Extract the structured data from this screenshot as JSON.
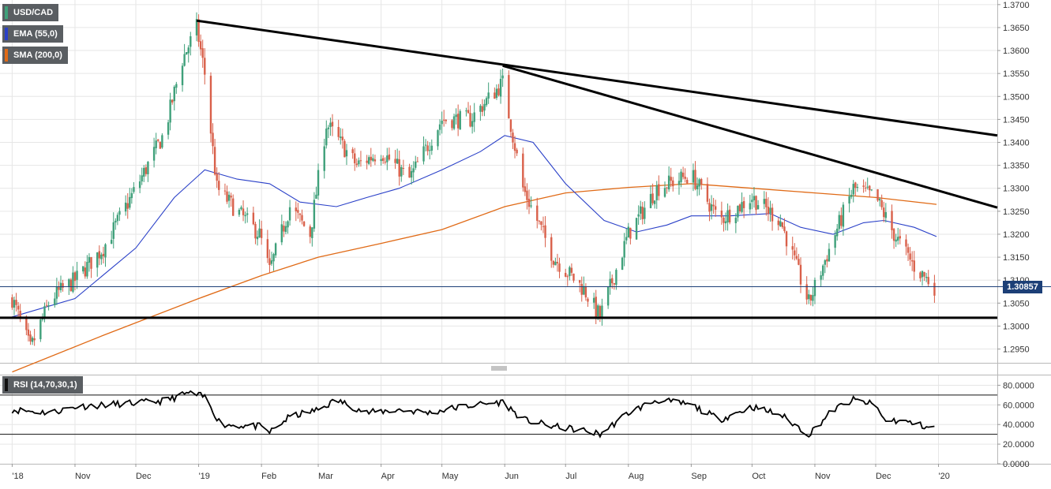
{
  "chart_data": [
    {
      "type": "candlestick",
      "title": "USD/CAD",
      "legend": [
        {
          "label": "USD/CAD",
          "color": "#3fa07a"
        },
        {
          "label": "EMA (55,0)",
          "color": "#2a40c8"
        },
        {
          "label": "SMA (200,0)",
          "color": "#e06a16"
        }
      ],
      "last_price": "1.30857",
      "ylim": [
        1.292,
        1.371
      ],
      "y_ticks": [
        "1.3700",
        "1.3650",
        "1.3600",
        "1.3550",
        "1.3500",
        "1.3450",
        "1.3400",
        "1.3350",
        "1.3300",
        "1.3250",
        "1.3200",
        "1.3150",
        "1.3100",
        "1.3050",
        "1.3000",
        "1.2950"
      ],
      "x_ticks": [
        "'18",
        "Nov",
        "Dec",
        "'19",
        "Feb",
        "Mar",
        "Apr",
        "May",
        "Jun",
        "Jul",
        "Aug",
        "Sep",
        "Oct",
        "Nov",
        "Dec",
        "'20"
      ],
      "close_path": [
        [
          "2018-10-01",
          1.306
        ],
        [
          "2018-10-10",
          1.295
        ],
        [
          "2018-10-20",
          1.306
        ],
        [
          "2018-11-01",
          1.31
        ],
        [
          "2018-11-15",
          1.317
        ],
        [
          "2018-12-01",
          1.33
        ],
        [
          "2018-12-15",
          1.342
        ],
        [
          "2018-12-24",
          1.358
        ],
        [
          "2018-12-31",
          1.365
        ],
        [
          "2019-01-04",
          1.355
        ],
        [
          "2019-01-10",
          1.33
        ],
        [
          "2019-01-20",
          1.325
        ],
        [
          "2019-01-31",
          1.32
        ],
        [
          "2019-02-05",
          1.312
        ],
        [
          "2019-02-15",
          1.326
        ],
        [
          "2019-02-25",
          1.32
        ],
        [
          "2019-03-05",
          1.344
        ],
        [
          "2019-03-20",
          1.335
        ],
        [
          "2019-04-01",
          1.338
        ],
        [
          "2019-04-15",
          1.332
        ],
        [
          "2019-05-01",
          1.345
        ],
        [
          "2019-05-15",
          1.345
        ],
        [
          "2019-05-31",
          1.353
        ],
        [
          "2019-06-10",
          1.33
        ],
        [
          "2019-06-25",
          1.315
        ],
        [
          "2019-07-10",
          1.308
        ],
        [
          "2019-07-18",
          1.302
        ],
        [
          "2019-08-01",
          1.32
        ],
        [
          "2019-08-15",
          1.33
        ],
        [
          "2019-09-01",
          1.333
        ],
        [
          "2019-09-15",
          1.323
        ],
        [
          "2019-10-01",
          1.328
        ],
        [
          "2019-10-15",
          1.323
        ],
        [
          "2019-10-29",
          1.305
        ],
        [
          "2019-11-10",
          1.319
        ],
        [
          "2019-11-20",
          1.33
        ],
        [
          "2019-12-01",
          1.328
        ],
        [
          "2019-12-10",
          1.32
        ],
        [
          "2019-12-20",
          1.313
        ],
        [
          "2019-12-30",
          1.3086
        ]
      ],
      "ema_55": [
        [
          "2018-10-01",
          1.302
        ],
        [
          "2018-11-01",
          1.306
        ],
        [
          "2018-12-01",
          1.317
        ],
        [
          "2018-12-20",
          1.328
        ],
        [
          "2019-01-04",
          1.334
        ],
        [
          "2019-01-20",
          1.332
        ],
        [
          "2019-02-05",
          1.331
        ],
        [
          "2019-02-20",
          1.327
        ],
        [
          "2019-03-10",
          1.326
        ],
        [
          "2019-03-25",
          1.328
        ],
        [
          "2019-04-10",
          1.33
        ],
        [
          "2019-05-01",
          1.334
        ],
        [
          "2019-05-20",
          1.338
        ],
        [
          "2019-06-01",
          1.3415
        ],
        [
          "2019-06-15",
          1.34
        ],
        [
          "2019-07-01",
          1.331
        ],
        [
          "2019-07-20",
          1.323
        ],
        [
          "2019-08-05",
          1.3205
        ],
        [
          "2019-08-20",
          1.322
        ],
        [
          "2019-09-01",
          1.324
        ],
        [
          "2019-09-20",
          1.324
        ],
        [
          "2019-10-10",
          1.3245
        ],
        [
          "2019-10-25",
          1.3215
        ],
        [
          "2019-11-10",
          1.32
        ],
        [
          "2019-11-25",
          1.3225
        ],
        [
          "2019-12-05",
          1.323
        ],
        [
          "2019-12-20",
          1.3215
        ],
        [
          "2019-12-31",
          1.3195
        ]
      ],
      "sma_200": [
        [
          "2018-10-01",
          1.29
        ],
        [
          "2018-11-15",
          1.298
        ],
        [
          "2019-01-01",
          1.306
        ],
        [
          "2019-02-01",
          1.311
        ],
        [
          "2019-03-01",
          1.315
        ],
        [
          "2019-04-01",
          1.318
        ],
        [
          "2019-05-01",
          1.321
        ],
        [
          "2019-06-01",
          1.326
        ],
        [
          "2019-07-01",
          1.329
        ],
        [
          "2019-08-01",
          1.3302
        ],
        [
          "2019-09-01",
          1.331
        ],
        [
          "2019-10-01",
          1.33
        ],
        [
          "2019-11-01",
          1.329
        ],
        [
          "2019-12-01",
          1.328
        ],
        [
          "2019-12-31",
          1.3265
        ]
      ],
      "trend_lines": [
        {
          "from": [
            "2018-12-31",
            1.3665
          ],
          "to": [
            "2020-01-30",
            1.3415
          ]
        },
        {
          "from": [
            "2019-05-31",
            1.3567
          ],
          "to": [
            "2020-01-30",
            1.3258
          ]
        },
        {
          "from": [
            "2018-09-25",
            1.3018
          ],
          "to": [
            "2020-01-30",
            1.3018
          ]
        }
      ],
      "grid": true
    },
    {
      "type": "line",
      "title": "RSI (14,70,30,1)",
      "ylim": [
        0,
        90
      ],
      "y_ticks": [
        "80.0000",
        "60.0000",
        "40.0000",
        "20.0000",
        "0.0000"
      ],
      "levels": [
        70,
        30
      ],
      "values": [
        [
          "2018-10-01",
          55
        ],
        [
          "2018-10-20",
          52
        ],
        [
          "2018-11-01",
          58
        ],
        [
          "2018-11-15",
          60
        ],
        [
          "2018-12-01",
          62
        ],
        [
          "2018-12-15",
          64
        ],
        [
          "2018-12-27",
          72
        ],
        [
          "2019-01-04",
          68
        ],
        [
          "2019-01-12",
          40
        ],
        [
          "2019-01-31",
          38
        ],
        [
          "2019-02-05",
          32
        ],
        [
          "2019-02-15",
          48
        ],
        [
          "2019-03-01",
          55
        ],
        [
          "2019-03-10",
          65
        ],
        [
          "2019-03-25",
          52
        ],
        [
          "2019-04-10",
          55
        ],
        [
          "2019-04-25",
          52
        ],
        [
          "2019-05-10",
          58
        ],
        [
          "2019-05-31",
          63
        ],
        [
          "2019-06-10",
          45
        ],
        [
          "2019-06-25",
          38
        ],
        [
          "2019-07-10",
          34
        ],
        [
          "2019-07-18",
          30
        ],
        [
          "2019-08-01",
          52
        ],
        [
          "2019-08-15",
          65
        ],
        [
          "2019-09-01",
          60
        ],
        [
          "2019-09-15",
          45
        ],
        [
          "2019-10-01",
          58
        ],
        [
          "2019-10-15",
          50
        ],
        [
          "2019-10-29",
          30
        ],
        [
          "2019-11-10",
          55
        ],
        [
          "2019-11-20",
          65
        ],
        [
          "2019-12-01",
          60
        ],
        [
          "2019-12-05",
          45
        ],
        [
          "2019-12-15",
          43
        ],
        [
          "2019-12-30",
          36
        ]
      ]
    }
  ]
}
